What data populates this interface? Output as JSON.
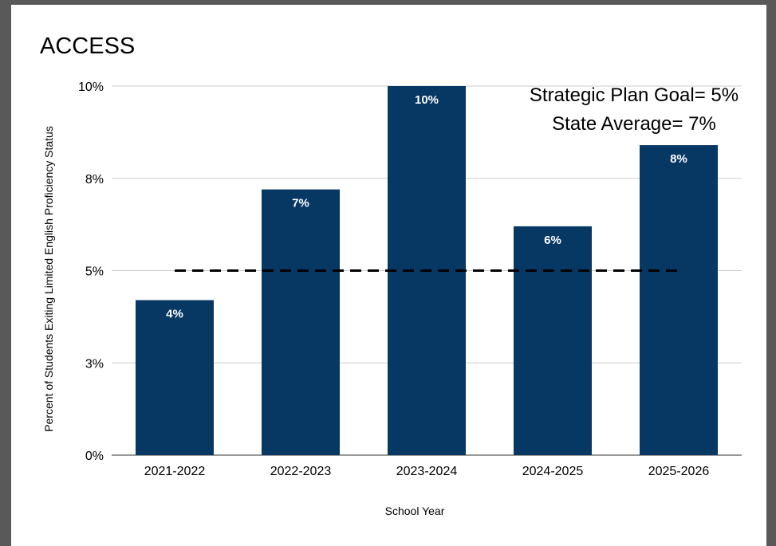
{
  "chart_data": {
    "type": "bar",
    "title": "ACCESS",
    "xlabel": "School Year",
    "ylabel": "Percent of Students Exiting Limited English Proficiency Status",
    "categories": [
      "2021-2022",
      "2022-2023",
      "2023-2024",
      "2024-2025",
      "2025-2026"
    ],
    "values": [
      4.2,
      7.2,
      10.0,
      6.2,
      8.4
    ],
    "data_labels": [
      "4%",
      "7%",
      "10%",
      "6%",
      "8%"
    ],
    "ylim": [
      0,
      10
    ],
    "yticks": [
      0,
      2.5,
      5,
      7.5,
      10
    ],
    "ytick_labels": [
      "0%",
      "3%",
      "5%",
      "8%",
      "10%"
    ],
    "grid": true,
    "bar_color": "#073763",
    "reference_line": {
      "value": 5,
      "style": "dashed",
      "color": "#000000"
    },
    "annotations": [
      "Strategic Plan Goal= 5%",
      "State Average= 7%"
    ]
  }
}
